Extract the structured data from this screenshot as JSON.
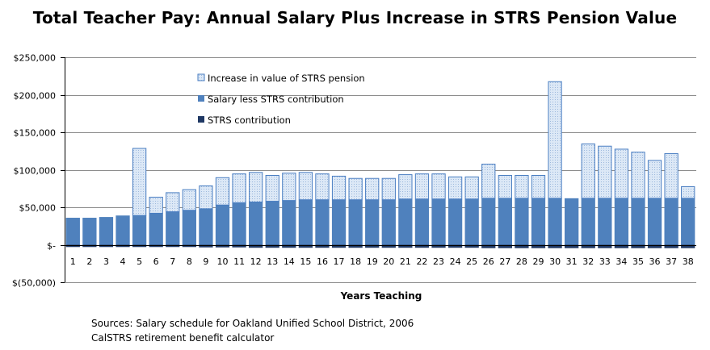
{
  "chart_data": {
    "type": "bar",
    "stacked": true,
    "title": "Total Teacher Pay:  Annual Salary Plus Increase in STRS Pension Value",
    "xlabel": "Years Teaching",
    "ylabel": "",
    "ylim": [
      -50000,
      250000
    ],
    "y_ticks": [
      -50000,
      0,
      50000,
      100000,
      150000,
      200000,
      250000
    ],
    "y_tick_labels": [
      "$(50,000)",
      "$-",
      "$50,000",
      "$100,000",
      "$150,000",
      "$200,000",
      "$250,000"
    ],
    "grid": true,
    "legend_position": "top-left inside plot",
    "categories": [
      "1",
      "2",
      "3",
      "4",
      "5",
      "6",
      "7",
      "8",
      "9",
      "10",
      "11",
      "12",
      "13",
      "14",
      "15",
      "16",
      "17",
      "18",
      "19",
      "20",
      "21",
      "22",
      "23",
      "24",
      "25",
      "26",
      "27",
      "28",
      "29",
      "30",
      "31",
      "32",
      "33",
      "34",
      "35",
      "36",
      "37",
      "38"
    ],
    "series": [
      {
        "name": "Increase in value of STRS pension",
        "color": "#dce8f6",
        "edge_color": "#4a7ec2",
        "pattern": "dotted",
        "values": [
          0,
          0,
          0,
          0,
          90000,
          22000,
          26000,
          28000,
          31000,
          37000,
          39000,
          40000,
          35000,
          37000,
          37000,
          35000,
          32000,
          29000,
          29000,
          29000,
          33000,
          34000,
          34000,
          30000,
          30000,
          46000,
          31000,
          31000,
          31000,
          156000,
          0,
          73000,
          70000,
          66000,
          62000,
          51000,
          60000,
          16000
        ]
      },
      {
        "name": "Salary less STRS contribution",
        "color": "#4f81bd",
        "values": [
          36000,
          36000,
          37000,
          39000,
          39000,
          42000,
          44000,
          46000,
          48000,
          53000,
          56000,
          57000,
          58000,
          59000,
          60000,
          60000,
          60000,
          60000,
          60000,
          60000,
          61000,
          61000,
          61000,
          61000,
          61000,
          62000,
          62000,
          62000,
          62000,
          62000,
          62000,
          62000,
          62000,
          62000,
          62000,
          62000,
          62000,
          62000
        ]
      },
      {
        "name": "STRS contribution",
        "color": "#1f3864",
        "values": [
          -3000,
          -3000,
          -3000,
          -3000,
          -3000,
          -3000,
          -3000,
          -3000,
          -3500,
          -3500,
          -3500,
          -4000,
          -4000,
          -4000,
          -4000,
          -4000,
          -4000,
          -4000,
          -4000,
          -4000,
          -4000,
          -4000,
          -4000,
          -4000,
          -4000,
          -4500,
          -4500,
          -4500,
          -4500,
          -4500,
          -4500,
          -4500,
          -4500,
          -4500,
          -4500,
          -4500,
          -4500,
          -4500
        ]
      }
    ]
  },
  "sources": {
    "line1": "Sources:  Salary schedule for Oakland Unified School District, 2006",
    "line2": "CalSTRS retirement benefit calculator"
  }
}
